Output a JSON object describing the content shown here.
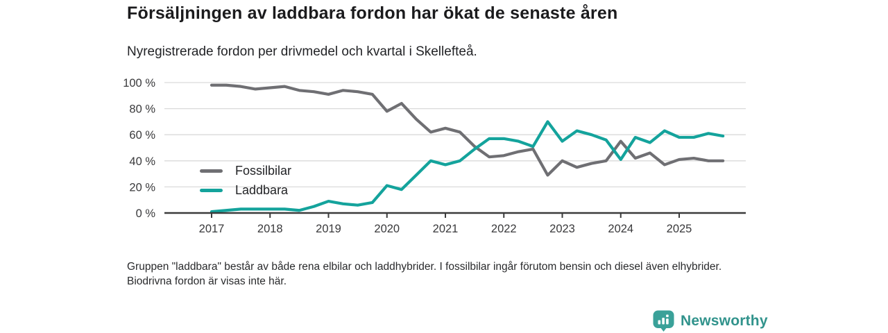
{
  "header": {
    "title": "Försäljningen av laddbara fordon har ökat de senaste åren",
    "subtitle": "Nyregistrerade fordon per drivmedel och kvartal i Skellefteå."
  },
  "chart_data": {
    "type": "line",
    "title": "Nyregistrerade fordon per drivmedel och kvartal i Skellefteå",
    "unit": "%",
    "ylim": [
      0,
      100
    ],
    "grid": true,
    "legend_position": "inside-left",
    "y_ticks": [
      0,
      20,
      40,
      60,
      80,
      100
    ],
    "y_tick_labels": [
      "0 %",
      "20 %",
      "40 %",
      "60 %",
      "80 %",
      "100 %"
    ],
    "x_tick_labels": [
      "2017",
      "2018",
      "2019",
      "2020",
      "2021",
      "2022",
      "2023",
      "2024",
      "2025"
    ],
    "quarters": [
      "2017 Q1",
      "2017 Q2",
      "2017 Q3",
      "2017 Q4",
      "2018 Q1",
      "2018 Q2",
      "2018 Q3",
      "2018 Q4",
      "2019 Q1",
      "2019 Q2",
      "2019 Q3",
      "2019 Q4",
      "2020 Q1",
      "2020 Q2",
      "2020 Q3",
      "2020 Q4",
      "2021 Q1",
      "2021 Q2",
      "2021 Q3",
      "2021 Q4",
      "2022 Q1",
      "2022 Q2",
      "2022 Q3",
      "2022 Q4",
      "2023 Q1",
      "2023 Q2",
      "2023 Q3",
      "2023 Q4",
      "2024 Q1",
      "2024 Q2",
      "2024 Q3",
      "2024 Q4",
      "2025 Q1",
      "2025 Q2",
      "2025 Q3",
      "2025 Q4"
    ],
    "series": [
      {
        "name": "Fossilbilar",
        "color": "#6f6f73",
        "values": [
          98,
          98,
          97,
          95,
          96,
          97,
          94,
          93,
          91,
          94,
          93,
          91,
          78,
          84,
          72,
          62,
          65,
          62,
          51,
          43,
          44,
          47,
          49,
          29,
          40,
          35,
          38,
          40,
          55,
          42,
          46,
          37,
          41,
          42,
          40,
          40
        ]
      },
      {
        "name": "Laddbara",
        "color": "#14a39c",
        "values": [
          1,
          2,
          3,
          3,
          3,
          3,
          2,
          5,
          9,
          7,
          6,
          8,
          21,
          18,
          29,
          40,
          37,
          40,
          49,
          57,
          57,
          55,
          51,
          70,
          55,
          63,
          60,
          56,
          41,
          58,
          54,
          63,
          58,
          58,
          61,
          59
        ]
      }
    ],
    "axis_color": "#3b3b3b",
    "grid_color": "#dadada",
    "tick_label_color": "#39393b"
  },
  "footnote": {
    "text": "Gruppen \"laddbara\" består av både rena elbilar och laddhybrider. I fossilbilar ingår förutom bensin och diesel även elhybrider. Biodrivna fordon är visas inte här."
  },
  "branding": {
    "name": "Newsworthy",
    "color": "#31938c",
    "icon_color": "#3aa199",
    "icon": "newsworthy-logo-icon"
  }
}
